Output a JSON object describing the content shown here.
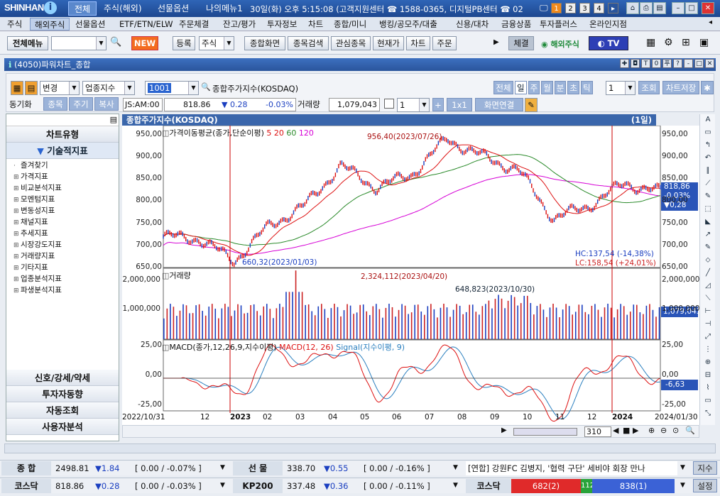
{
  "app": {
    "logo": "SHINHAN",
    "logo_mark": "i"
  },
  "title_tabs": [
    {
      "label": "전체",
      "selected": true
    },
    {
      "label": "주식(해외)"
    },
    {
      "label": "선물옵션"
    },
    {
      "label": "나의메뉴1"
    }
  ],
  "title_info": "30일(화) 오후 5:15:08 (고객지원센터 ☎ 1588-0365, 디지털PB센터 ☎ 02",
  "num_buttons": [
    "1",
    "2",
    "3",
    "4"
  ],
  "menu": [
    "주식",
    "해외주식",
    "선물옵션",
    "ETF/ETN/ELW",
    "주문체결",
    "잔고/평가",
    "투자정보",
    "차트",
    "종합/미니",
    "뱅킹/공모주/대출",
    "신용/대차",
    "금융상품",
    "투자플러스",
    "온라인지점"
  ],
  "menu_selected": "해외주식",
  "toolbar": {
    "all_menu": "전체메뉴",
    "new": "NEW",
    "register": "등록",
    "stock_sel": "주식",
    "buttons": [
      "종합화면",
      "종목검색",
      "관심종목",
      "현재가",
      "차트",
      "주문"
    ],
    "conclude": "체결",
    "overseas": "해외주식",
    "tv": "TV"
  },
  "window": {
    "title": "(4050)파워차트_종합",
    "controls": [
      "✚",
      "◘",
      "T",
      "0",
      "푸",
      "?",
      "-",
      "□",
      "✕"
    ]
  },
  "controls": {
    "change": "변경",
    "category": "업종지수",
    "code": "1001",
    "name": "종합주가지수(KOSDAQ)",
    "period_buttons": [
      "전체",
      "일",
      "주",
      "월",
      "분",
      "초",
      "틱"
    ],
    "period_selected": "일",
    "count": "1",
    "query": "조회",
    "save": "차트저장"
  },
  "row2": {
    "sync": "동기화",
    "tabs": [
      "종목",
      "주기",
      "복사"
    ],
    "session": "JS:AM:00",
    "price": "818.86",
    "change": "▼ 0.28",
    "pct": "-0.03%",
    "vol_label": "거래량",
    "volume": "1,079,043",
    "layout": "1",
    "layout_btn": "1x1",
    "link": "화면연결"
  },
  "sidebar": {
    "top": "차트유형",
    "section": "기술적지표",
    "items": [
      "즐겨찾기",
      "가격지표",
      "비교분석지표",
      "모멘텀지표",
      "변동성지표",
      "채널지표",
      "추세지표",
      "시장강도지표",
      "거래량지표",
      "기타지표",
      "업종분석지표",
      "파생분석지표"
    ],
    "bottom": [
      "신호/강세/약세",
      "투자자동향",
      "자동조회",
      "사용자분석"
    ]
  },
  "chart_head": {
    "title": "종합주가지수(KOSDAQ)",
    "period": "(1일)"
  },
  "chart_data": [
    {
      "type": "line",
      "title": "가격이동평균(종가,단순이평) 5 20 60 120",
      "ma": [
        "5",
        "20",
        "60",
        "120"
      ],
      "ma_colors": [
        "#d11",
        "#d11",
        "#2a8a2a",
        "#d600d6"
      ],
      "yticks": [
        "950,00",
        "900,00",
        "850,00",
        "800,00",
        "750,00",
        "700,00",
        "650,00"
      ],
      "ylim": [
        650,
        970
      ],
      "annotations": [
        "956,40(2023/07/26)",
        "660,32(2023/01/03)",
        "HC:137,54 (-14,38%)",
        "LC:158,54 (+24,01%)"
      ],
      "last": [
        "818,86",
        "-0,03%",
        "▼0,28"
      ],
      "x": [
        "2022-11",
        "2022-12",
        "2023-01",
        "2023-02",
        "2023-03",
        "2023-04",
        "2023-05",
        "2023-06",
        "2023-07",
        "2023-08",
        "2023-09",
        "2023-10",
        "2023-11",
        "2023-12",
        "2024-01"
      ],
      "series": [
        {
          "values": [
            720,
            715,
            665,
            745,
            790,
            880,
            830,
            860,
            940,
            900,
            870,
            760,
            790,
            840,
            820
          ]
        }
      ]
    },
    {
      "type": "bar",
      "title": "거래량",
      "yticks": [
        "2,000,000",
        "1,000,000"
      ],
      "ylim": [
        0,
        2400000
      ],
      "annotations": [
        "2,324,112(2023/04/20)",
        "648,823(2023/10/30)"
      ],
      "last": "1,079,043"
    },
    {
      "type": "line",
      "title": "MACD(종가,12,26,9,지수이평)",
      "legend": [
        "MACD(12, 26)",
        "Signal(지수이평, 9)"
      ],
      "yticks": [
        "25,00",
        "0,00",
        "-25,00"
      ],
      "ylim": [
        -30,
        30
      ],
      "last": "-6,63"
    }
  ],
  "xaxis": {
    "labels": [
      "2022/10/31",
      "12",
      "2023",
      "02",
      "03",
      "04",
      "05",
      "06",
      "07",
      "08",
      "09",
      "10",
      "11",
      "12",
      "2024",
      "2024/01/30"
    ],
    "zoom": "310"
  },
  "status": {
    "row1": [
      {
        "label": "종 합",
        "value": "2498.81",
        "chg": "▼1.84",
        "pct": "[ 0.00  / -0.07% ]"
      },
      {
        "label": "선 물",
        "value": "338.70",
        "chg": "▼0.55",
        "pct": "[ 0.00  / -0.16% ]"
      }
    ],
    "news": "[연합] 강원FC 김병지, '협력 구단' 세비야 회장 만나",
    "news_btn": "지수",
    "row2": [
      {
        "label": "코스닥",
        "value": "818.86",
        "chg": "▼0.28",
        "pct": "[ 0.00  / -0.03% ]"
      },
      {
        "label": "KP200",
        "value": "337.48",
        "chg": "▼0.36",
        "pct": "[ 0.00  / -0.11% ]"
      }
    ],
    "kosdaq_label": "코스닥",
    "breadth": [
      "682(2)",
      "112",
      "838(1)"
    ],
    "settings": "설정"
  }
}
